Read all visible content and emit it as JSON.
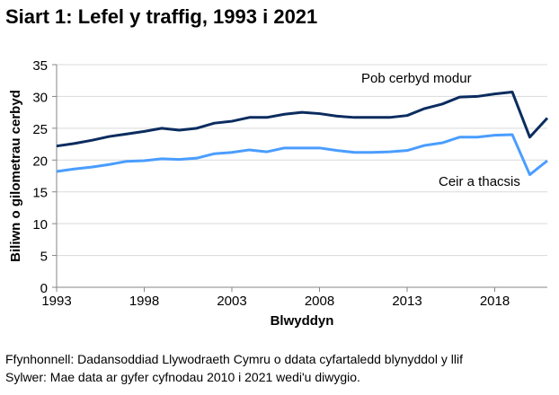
{
  "title": "Siart 1: Lefel y traffig, 1993 i 2021",
  "source": "Ffynhonnell: Dadansoddiad Llywodraeth Cymru o ddata cyfartaledd blynyddol y llif",
  "note": "Sylwer: Mae data ar gyfer cyfnodau 2010 i 2021 wedi'u diwygio.",
  "chart_data": {
    "type": "line",
    "title": "Siart 1: Lefel y traffig, 1993 i 2021",
    "xlabel": "Blwyddyn",
    "ylabel": "Biliwn o gilometrau cerbyd",
    "xlim": [
      1993,
      2021
    ],
    "ylim": [
      0,
      35
    ],
    "yticks": [
      "0",
      "5",
      "10",
      "15",
      "20",
      "25",
      "30",
      "35"
    ],
    "xticks": [
      "1993",
      "1998",
      "2003",
      "2008",
      "2013",
      "2018"
    ],
    "grid": true,
    "legend": "inline labels",
    "x": [
      1993,
      1994,
      1995,
      1996,
      1997,
      1998,
      1999,
      2000,
      2001,
      2002,
      2003,
      2004,
      2005,
      2006,
      2007,
      2008,
      2009,
      2010,
      2011,
      2012,
      2013,
      2014,
      2015,
      2016,
      2017,
      2018,
      2019,
      2020,
      2021
    ],
    "series": [
      {
        "name": "Pob cerbyd modur",
        "color": "#0b2c5f",
        "values": [
          22.2,
          22.6,
          23.1,
          23.7,
          24.1,
          24.5,
          25.0,
          24.7,
          25.0,
          25.8,
          26.1,
          26.7,
          26.7,
          27.2,
          27.5,
          27.3,
          26.9,
          26.7,
          26.7,
          26.7,
          27.0,
          28.1,
          28.8,
          29.9,
          30.0,
          30.4,
          30.7,
          23.6,
          26.6
        ]
      },
      {
        "name": "Ceir a thacsis",
        "color": "#4a9dff",
        "values": [
          18.2,
          18.6,
          18.9,
          19.3,
          19.8,
          19.9,
          20.2,
          20.1,
          20.3,
          21.0,
          21.2,
          21.6,
          21.3,
          21.9,
          21.9,
          21.9,
          21.5,
          21.2,
          21.2,
          21.3,
          21.5,
          22.3,
          22.7,
          23.6,
          23.6,
          23.9,
          24.0,
          17.7,
          19.9
        ]
      }
    ]
  }
}
